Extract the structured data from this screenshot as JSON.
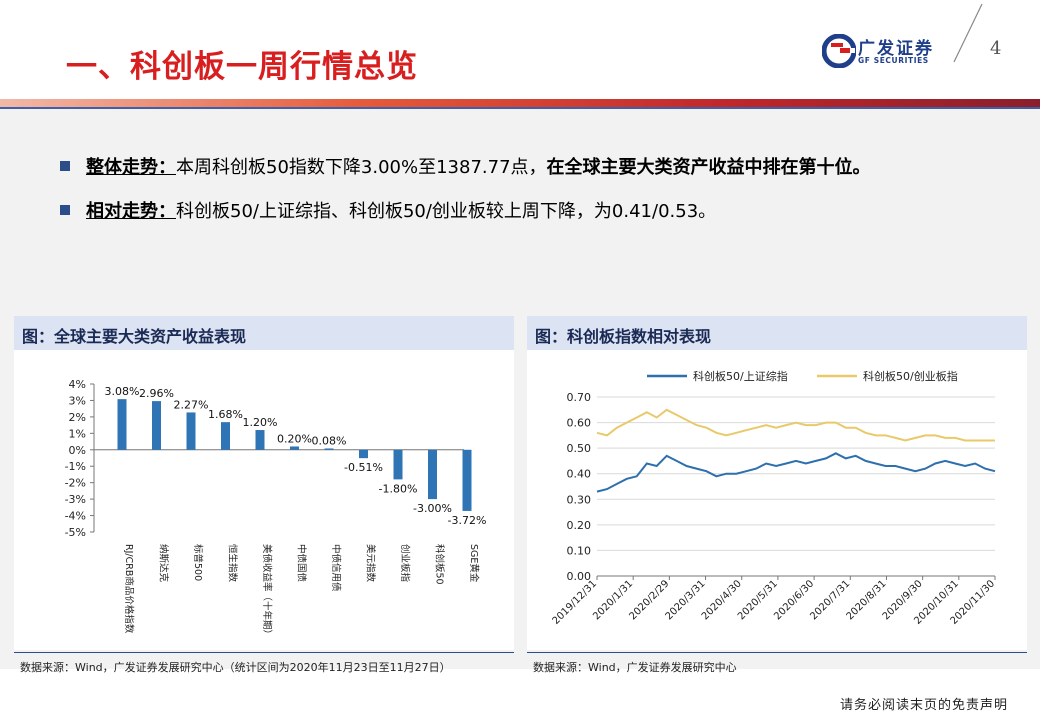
{
  "header": {
    "title": "一、科创板一周行情总览",
    "logo_cn": "广发证券",
    "logo_en": "GF SECURITIES",
    "page_number": "4",
    "brand_color": "#d81e1e"
  },
  "bullets": [
    {
      "label": "整体走势：",
      "text": "本周科创板50指数下降3.00%至1387.77点，",
      "bold_text": "在全球主要大类资产收益中排在第十位。"
    },
    {
      "label": "相对走势：",
      "text": "科创板50/上证综指、科创板50/创业板较上周下降，为0.41/0.53。",
      "bold_text": ""
    }
  ],
  "left_panel": {
    "heading": "图：全球主要大类资产收益表现",
    "source": "数据来源：Wind，广发证券发展研究中心（统计区间为2020年11月23日至11月27日）"
  },
  "right_panel": {
    "heading": "图：科创板指数相对表现",
    "source": "数据来源：Wind，广发证券发展研究中心"
  },
  "chart_data": [
    {
      "type": "bar",
      "categories": [
        "RJ/CRB商品价格指数",
        "纳斯达克",
        "标普500",
        "恒生指数",
        "美债收益率（十年期）",
        "中债国债",
        "中债信用债",
        "美元指数",
        "创业板指",
        "科创板50",
        "SGE黄金"
      ],
      "values": [
        3.08,
        2.96,
        2.27,
        1.68,
        1.2,
        0.2,
        0.08,
        -0.51,
        -1.8,
        -3.0,
        -3.72
      ],
      "data_labels": [
        "3.08%",
        "2.96%",
        "2.27%",
        "1.68%",
        "1.20%",
        "0.20%",
        "0.08%",
        "-0.51%",
        "-1.80%",
        "-3.00%",
        "-3.72%"
      ],
      "yticks": [
        "4%",
        "3%",
        "2%",
        "1%",
        "0%",
        "-1%",
        "-2%",
        "-3%",
        "-4%",
        "-5%"
      ],
      "ylim": [
        -5,
        4
      ],
      "color": "#2f75b5",
      "grid": false
    },
    {
      "type": "line",
      "x_tick_labels": [
        "2019/12/31",
        "2020/1/31",
        "2020/2/29",
        "2020/3/31",
        "2020/4/30",
        "2020/5/31",
        "2020/6/30",
        "2020/7/31",
        "2020/8/31",
        "2020/9/30",
        "2020/10/31",
        "2020/11/30"
      ],
      "yticks": [
        "0.70",
        "0.60",
        "0.50",
        "0.40",
        "0.30",
        "0.20",
        "0.10",
        "0.00"
      ],
      "ylim": [
        0,
        0.7
      ],
      "grid": true,
      "legend_position": "top",
      "series": [
        {
          "name": "科创板50/上证综指",
          "color": "#2e6fad",
          "values": [
            0.33,
            0.34,
            0.36,
            0.38,
            0.39,
            0.44,
            0.43,
            0.47,
            0.45,
            0.43,
            0.42,
            0.41,
            0.39,
            0.4,
            0.4,
            0.41,
            0.42,
            0.44,
            0.43,
            0.44,
            0.45,
            0.44,
            0.45,
            0.46,
            0.48,
            0.46,
            0.47,
            0.45,
            0.44,
            0.43,
            0.43,
            0.42,
            0.41,
            0.42,
            0.44,
            0.45,
            0.44,
            0.43,
            0.44,
            0.42,
            0.41
          ]
        },
        {
          "name": "科创板50/创业板指",
          "color": "#e9c96a",
          "values": [
            0.56,
            0.55,
            0.58,
            0.6,
            0.62,
            0.64,
            0.62,
            0.65,
            0.63,
            0.61,
            0.59,
            0.58,
            0.56,
            0.55,
            0.56,
            0.57,
            0.58,
            0.59,
            0.58,
            0.59,
            0.6,
            0.59,
            0.59,
            0.6,
            0.6,
            0.58,
            0.58,
            0.56,
            0.55,
            0.55,
            0.54,
            0.53,
            0.54,
            0.55,
            0.55,
            0.54,
            0.54,
            0.53,
            0.53,
            0.53,
            0.53
          ]
        }
      ]
    }
  ],
  "footer": "请务必阅读末页的免责声明"
}
